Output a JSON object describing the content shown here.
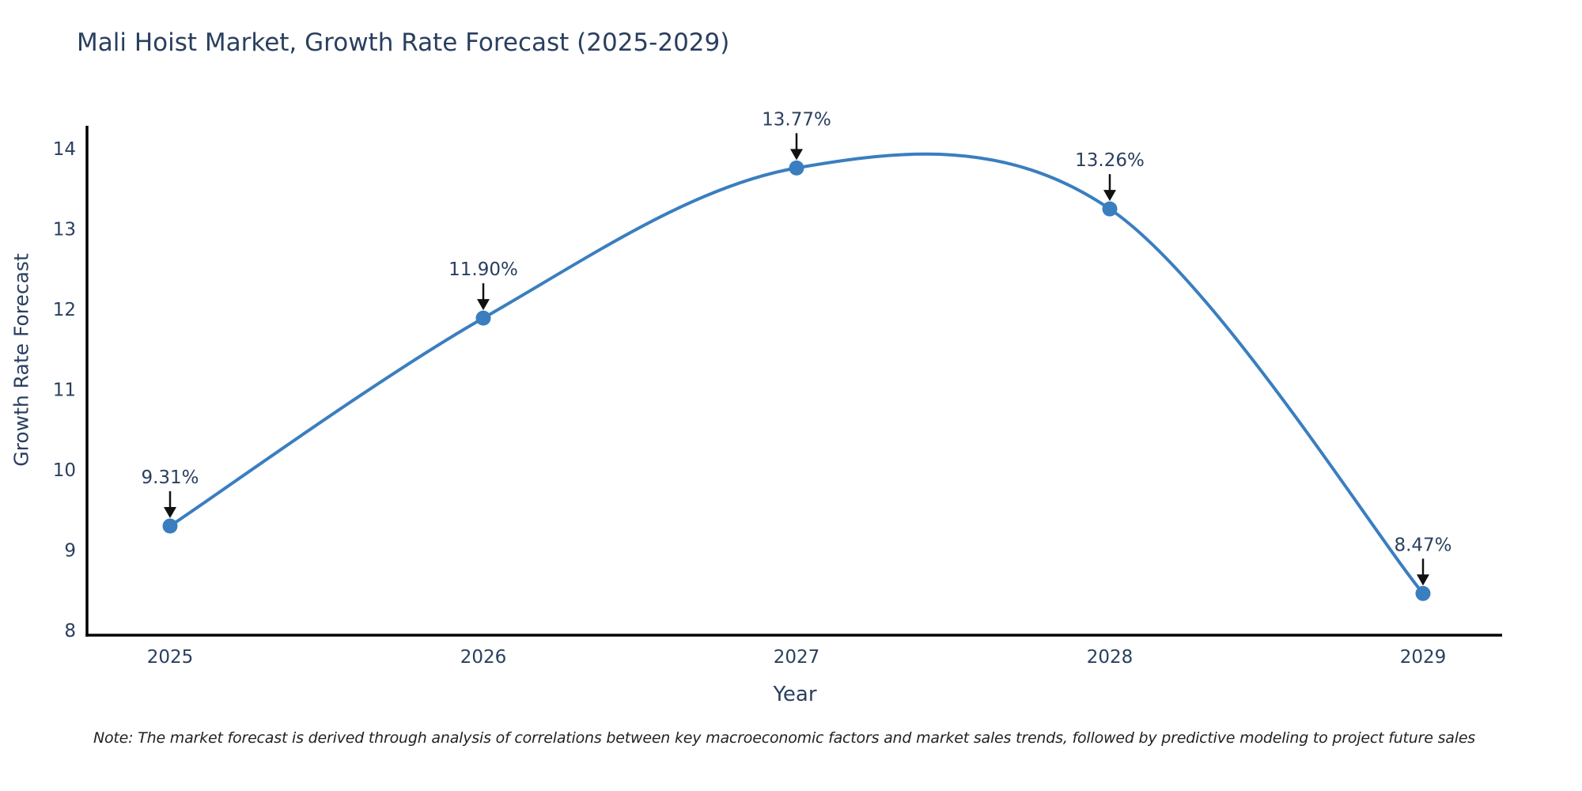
{
  "chart_data": {
    "type": "line",
    "title": "Mali Hoist Market, Growth Rate Forecast (2025-2029)",
    "xlabel": "Year",
    "ylabel": "Growth Rate Forecast",
    "categories": [
      "2025",
      "2026",
      "2027",
      "2028",
      "2029"
    ],
    "series": [
      {
        "name": "Growth Rate Forecast",
        "values": [
          9.31,
          11.9,
          13.77,
          13.26,
          8.47
        ]
      }
    ],
    "point_labels": [
      "9.31%",
      "11.90%",
      "13.77%",
      "13.26%",
      "8.47%"
    ],
    "ylim": [
      8,
      14
    ],
    "yticks": [
      8,
      9,
      10,
      11,
      12,
      13,
      14
    ],
    "line_shape": "spline",
    "grid": false,
    "legend_position": "none",
    "colors": {
      "line": "#3a7ebf",
      "marker": "#3a7ebf",
      "axis_line": "#000000",
      "text": "#2a3f5f",
      "annotation_text": "#2a3f5f",
      "annotation_arrow": "#111111"
    }
  },
  "note": "Note: The market forecast is derived through analysis of correlations between key macroeconomic factors and market sales trends, followed by predictive modeling to project future sales"
}
